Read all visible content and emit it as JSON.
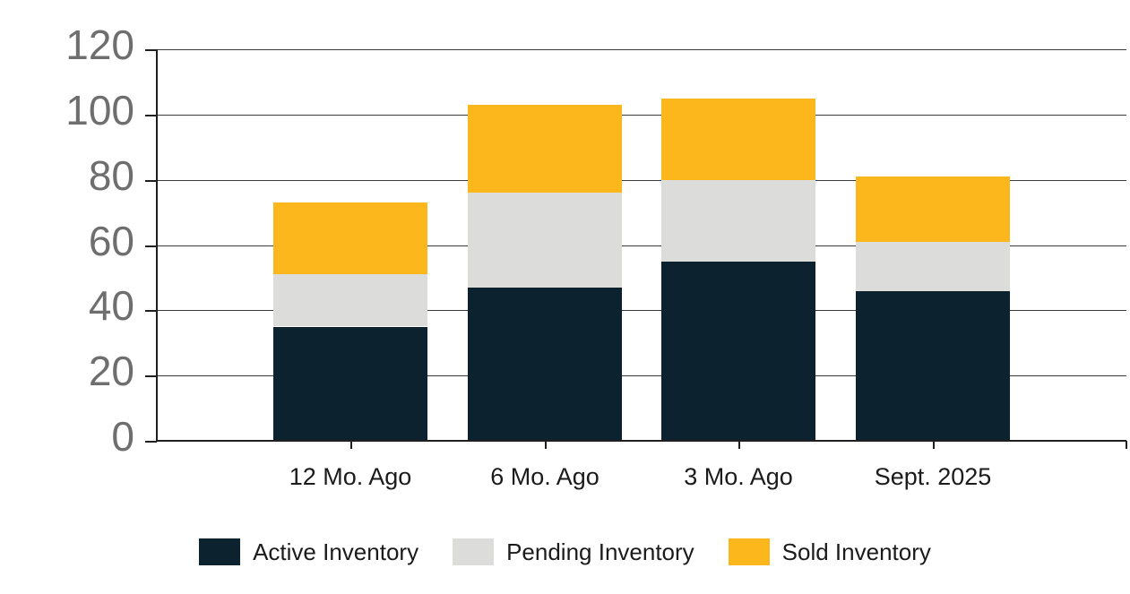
{
  "chart_data": {
    "type": "bar",
    "stacked": true,
    "title": "",
    "xlabel": "",
    "ylabel": "",
    "categories": [
      "12 Mo. Ago",
      "6 Mo. Ago",
      "3 Mo. Ago",
      "Sept. 2025"
    ],
    "series": [
      {
        "name": "Active Inventory",
        "color": "#0C222F",
        "values": [
          35,
          47,
          55,
          46
        ]
      },
      {
        "name": "Pending Inventory",
        "color": "#DCDDDB",
        "values": [
          16,
          29,
          25,
          15
        ]
      },
      {
        "name": "Sold Inventory",
        "color": "#FBB71B",
        "values": [
          22,
          27,
          25,
          20
        ]
      }
    ],
    "stack_totals": [
      73,
      103,
      105,
      81
    ],
    "ylim": [
      0,
      120
    ],
    "yticks": [
      0,
      20,
      40,
      60,
      80,
      100,
      120
    ],
    "grid": true,
    "legend_position": "bottom",
    "colors": {
      "background": "#FFFFFF",
      "gridline": "#3A3A3A",
      "axis": "#1F1F1F",
      "y_tick_label": "#6E6E6E",
      "category_label": "#1B1B1B",
      "legend_label": "#1B1B1B"
    }
  }
}
